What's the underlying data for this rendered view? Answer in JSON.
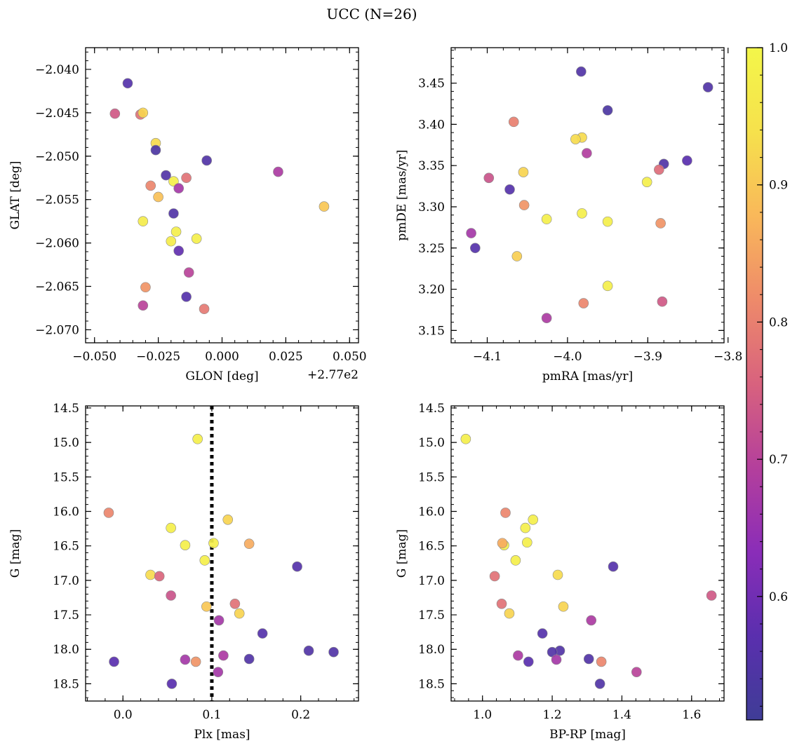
{
  "figure_title": "UCC (N=26)",
  "colorbar": {
    "range": [
      0.51,
      1.0
    ],
    "ticks": [
      0.6,
      0.7,
      0.8,
      0.9,
      1.0
    ],
    "tick_labels": [
      "0.6",
      "0.7",
      "0.8",
      "0.9",
      "1.0"
    ],
    "colormap": "plasma",
    "colors": [
      "#3f3d96",
      "#5a2fae",
      "#8a2db8",
      "#b43f9c",
      "#d8627e",
      "#ee8a6a",
      "#f9b85a",
      "#f6e14c",
      "#f3f64a"
    ]
  },
  "chart_data": [
    {
      "type": "scatter",
      "name": "glon-glat",
      "xlabel": "GLON [deg]",
      "ylabel": "GLAT [deg]",
      "x_offset_label": "+2.77e2",
      "xlim": [
        -0.0535,
        0.0535
      ],
      "ylim": [
        -2.0715,
        -2.0375
      ],
      "xticks": [
        -0.05,
        -0.025,
        0.0,
        0.025,
        0.05
      ],
      "xtick_labels": [
        "−0.050",
        "−0.025",
        "0.000",
        "0.025",
        "0.050"
      ],
      "yticks": [
        -2.04,
        -2.045,
        -2.05,
        -2.055,
        -2.06,
        -2.065,
        -2.07
      ],
      "ytick_labels": [
        "−2.040",
        "−2.045",
        "−2.050",
        "−2.055",
        "−2.060",
        "−2.065",
        "−2.070"
      ],
      "x": [
        -0.037,
        -0.042,
        -0.032,
        -0.031,
        -0.026,
        -0.026,
        -0.006,
        0.022,
        -0.022,
        -0.019,
        -0.014,
        -0.028,
        -0.017,
        -0.025,
        0.04,
        -0.019,
        -0.031,
        -0.018,
        -0.02,
        -0.01,
        -0.017,
        -0.013,
        -0.03,
        -0.014,
        -0.031,
        -0.007
      ],
      "y": [
        -2.0416,
        -2.0451,
        -2.0452,
        -2.045,
        -2.0485,
        -2.0493,
        -2.0505,
        -2.0518,
        -2.0522,
        -2.0529,
        -2.0525,
        -2.0534,
        -2.0537,
        -2.0547,
        -2.0558,
        -2.0566,
        -2.0575,
        -2.0587,
        -2.0598,
        -2.0595,
        -2.0609,
        -2.0634,
        -2.0651,
        -2.0662,
        -2.0672,
        -2.0676
      ],
      "c": [
        0.56,
        0.74,
        0.78,
        0.92,
        0.93,
        0.54,
        0.55,
        0.68,
        0.55,
        0.98,
        0.78,
        0.81,
        0.67,
        0.89,
        0.9,
        0.55,
        0.97,
        0.98,
        0.97,
        0.98,
        0.58,
        0.7,
        0.83,
        0.56,
        0.7,
        0.79
      ]
    },
    {
      "type": "scatter",
      "name": "pmra-pmde",
      "xlabel": "pmRA [mas/yr]",
      "ylabel": "pmDE [mas/yr]",
      "xlim": [
        -4.145,
        -3.805
      ],
      "ylim": [
        3.135,
        3.493
      ],
      "xticks": [
        -4.1,
        -4.0,
        -3.9,
        -3.8
      ],
      "xtick_labels": [
        "−4.1",
        "−4.0",
        "−3.9",
        "−3.8"
      ],
      "yticks": [
        3.15,
        3.2,
        3.25,
        3.3,
        3.35,
        3.4,
        3.45
      ],
      "ytick_labels": [
        "3.15",
        "3.20",
        "3.25",
        "3.30",
        "3.35",
        "3.40",
        "3.45"
      ],
      "x": [
        -3.983,
        -3.825,
        -3.95,
        -4.067,
        -3.982,
        -3.99,
        -3.976,
        -3.88,
        -3.851,
        -3.886,
        -4.055,
        -4.098,
        -4.072,
        -4.054,
        -3.901,
        -4.026,
        -3.982,
        -3.95,
        -3.884,
        -4.12,
        -4.115,
        -4.063,
        -3.95,
        -3.98,
        -3.882,
        -4.026
      ],
      "y": [
        3.464,
        3.445,
        3.417,
        3.403,
        3.384,
        3.382,
        3.365,
        3.352,
        3.356,
        3.345,
        3.342,
        3.335,
        3.321,
        3.302,
        3.33,
        3.285,
        3.292,
        3.282,
        3.28,
        3.268,
        3.25,
        3.24,
        3.204,
        3.183,
        3.185,
        3.165
      ],
      "c": [
        0.55,
        0.55,
        0.54,
        0.8,
        0.93,
        0.93,
        0.69,
        0.55,
        0.57,
        0.77,
        0.92,
        0.73,
        0.56,
        0.83,
        0.98,
        0.98,
        0.98,
        0.98,
        0.83,
        0.67,
        0.56,
        0.91,
        0.98,
        0.81,
        0.74,
        0.68
      ]
    },
    {
      "type": "scatter",
      "name": "plx-g",
      "xlabel": "Plx [mas]",
      "ylabel": "G [mag]",
      "xlim": [
        -0.042,
        0.265
      ],
      "ylim": [
        18.75,
        14.47
      ],
      "vline": 0.1,
      "xticks": [
        0.0,
        0.1,
        0.2
      ],
      "xtick_labels": [
        "0.0",
        "0.1",
        "0.2"
      ],
      "yticks": [
        14.5,
        15.0,
        15.5,
        16.0,
        16.5,
        17.0,
        17.5,
        18.0,
        18.5
      ],
      "ytick_labels": [
        "14.5",
        "15.0",
        "15.5",
        "16.0",
        "16.5",
        "17.0",
        "17.5",
        "18.0",
        "18.5"
      ],
      "x": [
        0.084,
        -0.016,
        0.054,
        0.118,
        0.07,
        0.102,
        0.142,
        0.092,
        0.196,
        0.031,
        0.041,
        0.054,
        0.094,
        0.126,
        0.108,
        0.131,
        0.157,
        0.209,
        0.237,
        -0.01,
        0.07,
        0.082,
        0.113,
        0.142,
        0.107,
        0.055
      ],
      "y": [
        14.95,
        16.02,
        16.24,
        16.12,
        16.49,
        16.46,
        16.47,
        16.71,
        16.8,
        16.92,
        16.94,
        17.22,
        17.38,
        17.34,
        17.58,
        17.48,
        17.77,
        18.02,
        18.04,
        18.18,
        18.15,
        18.18,
        18.09,
        18.14,
        18.33,
        18.5
      ],
      "c": [
        0.98,
        0.81,
        0.98,
        0.92,
        0.98,
        0.98,
        0.86,
        0.98,
        0.56,
        0.93,
        0.76,
        0.73,
        0.9,
        0.78,
        0.67,
        0.92,
        0.56,
        0.55,
        0.55,
        0.57,
        0.67,
        0.83,
        0.68,
        0.55,
        0.67,
        0.57
      ]
    },
    {
      "type": "scatter",
      "name": "color-magnitude",
      "xlabel": "BP-RP [mag]",
      "ylabel": "G [mag]",
      "xlim": [
        0.91,
        1.693
      ],
      "ylim": [
        18.75,
        14.47
      ],
      "xticks": [
        1.0,
        1.2,
        1.4,
        1.6
      ],
      "xtick_labels": [
        "1.0",
        "1.2",
        "1.4",
        "1.6"
      ],
      "yticks": [
        14.5,
        15.0,
        15.5,
        16.0,
        16.5,
        17.0,
        17.5,
        18.0,
        18.5
      ],
      "ytick_labels": [
        "14.5",
        "15.0",
        "15.5",
        "16.0",
        "16.5",
        "17.0",
        "17.5",
        "18.0",
        "18.5"
      ],
      "x": [
        0.952,
        1.066,
        1.123,
        1.145,
        1.062,
        1.057,
        1.128,
        1.095,
        1.375,
        1.216,
        1.035,
        1.657,
        1.232,
        1.055,
        1.312,
        1.077,
        1.172,
        1.222,
        1.2,
        1.132,
        1.212,
        1.341,
        1.102,
        1.305,
        1.442,
        1.337
      ],
      "y": [
        14.95,
        16.02,
        16.24,
        16.12,
        16.49,
        16.46,
        16.45,
        16.71,
        16.8,
        16.92,
        16.94,
        17.22,
        17.38,
        17.34,
        17.58,
        17.48,
        17.77,
        18.02,
        18.04,
        18.18,
        18.15,
        18.18,
        18.09,
        18.14,
        18.33,
        18.5
      ],
      "c": [
        0.98,
        0.81,
        0.98,
        0.98,
        0.98,
        0.86,
        0.98,
        0.98,
        0.56,
        0.93,
        0.78,
        0.74,
        0.92,
        0.78,
        0.68,
        0.92,
        0.56,
        0.55,
        0.55,
        0.57,
        0.67,
        0.81,
        0.68,
        0.55,
        0.7,
        0.55
      ]
    }
  ]
}
